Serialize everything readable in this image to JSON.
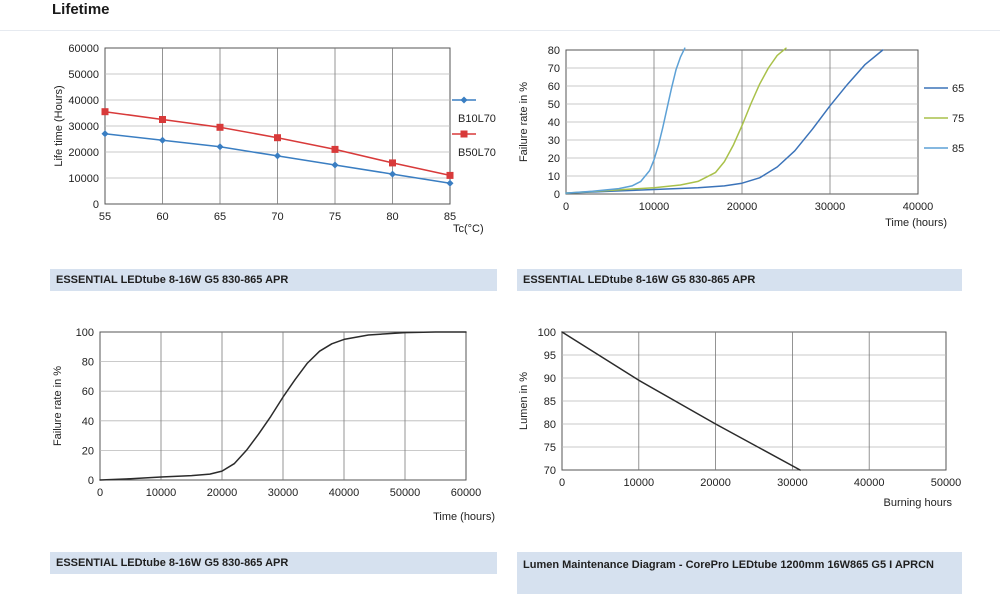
{
  "page": {
    "heading": "Lifetime"
  },
  "chart_data": [
    {
      "type": "line",
      "caption": "ESSENTIAL LEDtube 8-16W G5 830-865 APR",
      "ylabel": "Life time (Hours)",
      "xlabel": "Tc(°C)",
      "x": [
        55,
        60,
        65,
        70,
        75,
        80,
        85
      ],
      "xlim": [
        55,
        85
      ],
      "ylim": [
        0,
        60000
      ],
      "xticks": [
        "55",
        "60",
        "65",
        "70",
        "75",
        "80",
        "85"
      ],
      "yticks": [
        "0",
        "10000",
        "20000",
        "30000",
        "40000",
        "50000",
        "60000"
      ],
      "grid": true,
      "legend_position": "right",
      "series": [
        {
          "name": "B10L70",
          "color": "#3a7ec2",
          "marker": "diamond",
          "values": [
            27000,
            24500,
            22000,
            18500,
            15000,
            11500,
            8000
          ]
        },
        {
          "name": "B50L70",
          "color": "#d83a3a",
          "marker": "square",
          "values": [
            35500,
            32500,
            29500,
            25500,
            21000,
            15800,
            11000
          ]
        }
      ]
    },
    {
      "type": "line",
      "caption": "ESSENTIAL LEDtube 8-16W G5 830-865 APR",
      "ylabel": "Failure rate in %",
      "xlabel": "Time (hours)",
      "xlim": [
        0,
        40000
      ],
      "ylim": [
        0,
        80
      ],
      "xticks": [
        "0",
        "10000",
        "20000",
        "30000",
        "40000"
      ],
      "yticks": [
        "0",
        "10",
        "20",
        "30",
        "40",
        "50",
        "60",
        "70",
        "80"
      ],
      "grid": true,
      "legend_position": "right",
      "series": [
        {
          "name": "65",
          "color": "#3b73b9",
          "x": [
            0,
            5000,
            10000,
            15000,
            18000,
            20000,
            22000,
            24000,
            26000,
            28000,
            30000,
            32000,
            34000,
            36000
          ],
          "values": [
            0.5,
            1.5,
            2.5,
            3.5,
            4.5,
            6,
            9,
            15,
            24,
            36,
            49,
            61,
            72,
            80
          ]
        },
        {
          "name": "75",
          "color": "#a9c14a",
          "x": [
            0,
            5000,
            10000,
            13000,
            15000,
            17000,
            18000,
            19000,
            20000,
            21000,
            22000,
            23000,
            24000,
            25000
          ],
          "values": [
            0.5,
            2,
            3.5,
            5,
            7,
            12,
            18,
            27,
            38,
            50,
            61,
            70,
            77,
            81
          ]
        },
        {
          "name": "85",
          "color": "#5da1d6",
          "x": [
            0,
            3000,
            6000,
            7500,
            8500,
            9500,
            10000,
            10500,
            11000,
            11500,
            12000,
            12500,
            13000,
            13500
          ],
          "values": [
            0.5,
            1.5,
            3,
            4.5,
            7,
            13,
            19,
            27,
            37,
            48,
            59,
            69,
            76,
            81
          ]
        }
      ]
    },
    {
      "type": "line",
      "caption": "ESSENTIAL LEDtube 8-16W G5 830-865 APR",
      "ylabel": "Failure rate in %",
      "xlabel": "Time (hours)",
      "xlim": [
        0,
        60000
      ],
      "ylim": [
        0,
        100
      ],
      "xticks": [
        "0",
        "10000",
        "20000",
        "30000",
        "40000",
        "50000",
        "60000"
      ],
      "yticks": [
        "0",
        "20",
        "40",
        "60",
        "80",
        "100"
      ],
      "grid": true,
      "series": [
        {
          "color": "#2b2b2b",
          "x": [
            0,
            5000,
            10000,
            15000,
            18000,
            20000,
            22000,
            24000,
            26000,
            28000,
            30000,
            32000,
            34000,
            36000,
            38000,
            40000,
            44000,
            50000,
            55000,
            60000
          ],
          "values": [
            0,
            0.8,
            2,
            3,
            4,
            6,
            11,
            20,
            31,
            43,
            56,
            68,
            79,
            87,
            92,
            95,
            98,
            99.6,
            100,
            100
          ]
        }
      ]
    },
    {
      "type": "line",
      "caption": "Lumen Maintenance Diagram - CorePro LEDtube 1200mm 16W865 G5 I APRCN",
      "ylabel": "Lumen in %",
      "xlabel": "Burning hours",
      "xlim": [
        0,
        50000
      ],
      "ylim": [
        70,
        100
      ],
      "xticks": [
        "0",
        "10000",
        "20000",
        "30000",
        "40000",
        "50000"
      ],
      "yticks": [
        "70",
        "75",
        "80",
        "85",
        "90",
        "95",
        "100"
      ],
      "grid": true,
      "series": [
        {
          "color": "#2b2b2b",
          "x": [
            0,
            10000,
            20000,
            31000
          ],
          "values": [
            100,
            89.5,
            80,
            70
          ]
        }
      ]
    }
  ]
}
